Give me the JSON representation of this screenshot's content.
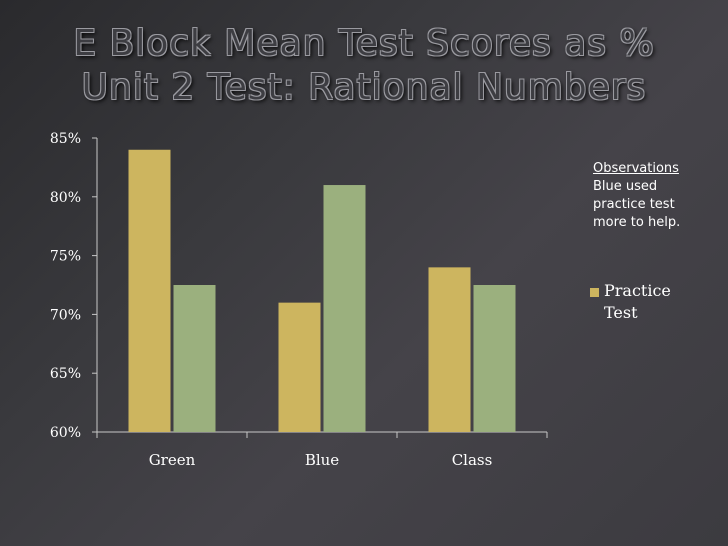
{
  "title_line1": "E Block Mean Test Scores as %",
  "title_line2": "Unit 2 Test: Rational Numbers",
  "observations": {
    "heading": "Observations",
    "text": "Blue used practice test more to help."
  },
  "colors": {
    "practice": "#cdb55f",
    "test": "#9bb07e",
    "axis": "#c8c8c8"
  },
  "chart_data": {
    "type": "bar",
    "categories": [
      "Green",
      "Blue",
      "Class"
    ],
    "series": [
      {
        "name": "Practice Test",
        "values": [
          84,
          71,
          74
        ]
      },
      {
        "name": "",
        "values": [
          72.5,
          81,
          72.5
        ]
      }
    ],
    "ylim": [
      60,
      85
    ],
    "yticks": [
      60,
      65,
      70,
      75,
      80,
      85
    ],
    "ytick_labels": [
      "60%",
      "65%",
      "70%",
      "75%",
      "80%",
      "85%"
    ],
    "legend": {
      "position": "right",
      "entries": [
        "Practice Test"
      ]
    },
    "grid": false
  }
}
